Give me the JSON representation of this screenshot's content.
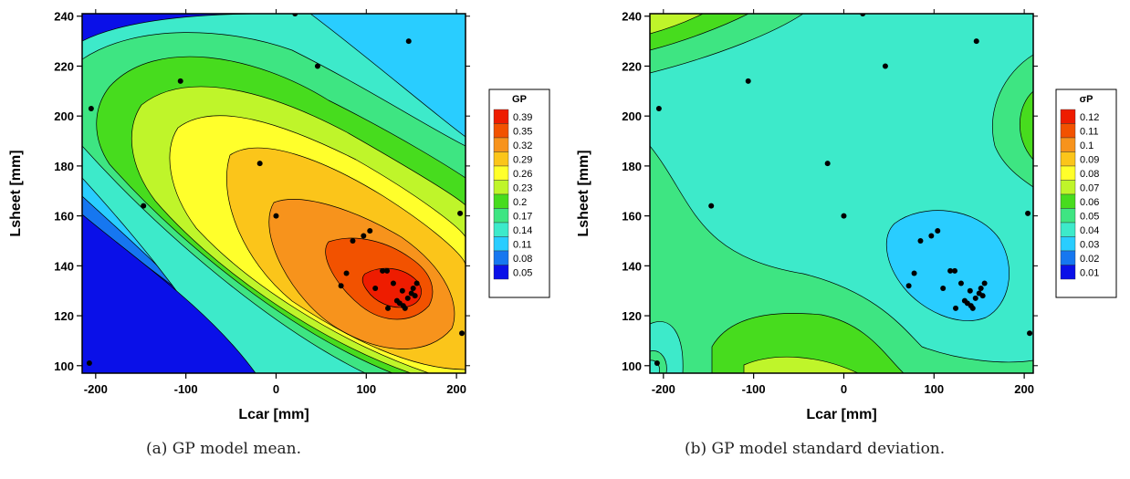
{
  "chart_data": [
    {
      "type": "contour",
      "caption": "(a) GP model mean.",
      "xlabel": "Lcar [mm]",
      "ylabel": "Lsheet [mm]",
      "xlim": [
        -215,
        210
      ],
      "ylim": [
        97,
        241
      ],
      "xticks": [
        "-200",
        "-100",
        "0",
        "100",
        "200"
      ],
      "xtick_values": [
        -200,
        -100,
        0,
        100,
        200
      ],
      "yticks": [
        "100",
        "120",
        "140",
        "160",
        "180",
        "200",
        "220",
        "240"
      ],
      "ytick_values": [
        100,
        120,
        140,
        160,
        180,
        200,
        220,
        240
      ],
      "legend_title": "GP",
      "legend_levels": [
        "0.39",
        "0.35",
        "0.32",
        "0.29",
        "0.26",
        "0.23",
        "0.2",
        "0.17",
        "0.14",
        "0.11",
        "0.08",
        "0.05"
      ],
      "legend_colors": [
        "#ee1c00",
        "#f25200",
        "#f7931c",
        "#fbc51a",
        "#ffff2b",
        "#bff52a",
        "#47dc1e",
        "#3ee582",
        "#3deaca",
        "#29cdff",
        "#1677f0",
        "#0a10e8"
      ],
      "legend_placement": "right",
      "points": [
        [
          -205,
          203
        ],
        [
          -207,
          101
        ],
        [
          -147,
          164
        ],
        [
          -106,
          214
        ],
        [
          -18,
          181
        ],
        [
          0,
          160
        ],
        [
          21,
          241
        ],
        [
          46,
          220
        ],
        [
          147,
          230
        ],
        [
          204,
          161
        ],
        [
          206,
          113
        ],
        [
          72,
          132
        ],
        [
          78,
          137
        ],
        [
          85,
          150
        ],
        [
          97,
          152
        ],
        [
          104,
          154
        ],
        [
          110,
          131
        ],
        [
          118,
          138
        ],
        [
          123,
          138
        ],
        [
          124,
          123
        ],
        [
          130,
          133
        ],
        [
          134,
          126
        ],
        [
          137,
          125
        ],
        [
          140,
          130
        ],
        [
          141,
          124
        ],
        [
          146,
          127
        ],
        [
          150,
          129
        ],
        [
          152,
          131
        ],
        [
          154,
          128
        ],
        [
          156,
          133
        ],
        [
          143,
          123
        ]
      ]
    },
    {
      "type": "contour",
      "caption": "(b) GP model standard deviation.",
      "xlabel": "Lcar [mm]",
      "ylabel": "Lsheet [mm]",
      "xlim": [
        -215,
        210
      ],
      "ylim": [
        97,
        241
      ],
      "xticks": [
        "-200",
        "-100",
        "0",
        "100",
        "200"
      ],
      "xtick_values": [
        -200,
        -100,
        0,
        100,
        200
      ],
      "yticks": [
        "100",
        "120",
        "140",
        "160",
        "180",
        "200",
        "220",
        "240"
      ],
      "ytick_values": [
        100,
        120,
        140,
        160,
        180,
        200,
        220,
        240
      ],
      "legend_title": "σP",
      "legend_levels": [
        "0.12",
        "0.11",
        "0.1",
        "0.09",
        "0.08",
        "0.07",
        "0.06",
        "0.05",
        "0.04",
        "0.03",
        "0.02",
        "0.01"
      ],
      "legend_colors": [
        "#ee1c00",
        "#f25200",
        "#f7931c",
        "#fbc51a",
        "#ffff2b",
        "#bff52a",
        "#47dc1e",
        "#3ee582",
        "#3deaca",
        "#29cdff",
        "#1677f0",
        "#0a10e8"
      ],
      "legend_placement": "right",
      "points": [
        [
          -205,
          203
        ],
        [
          -207,
          101
        ],
        [
          -147,
          164
        ],
        [
          -106,
          214
        ],
        [
          -18,
          181
        ],
        [
          0,
          160
        ],
        [
          21,
          241
        ],
        [
          46,
          220
        ],
        [
          147,
          230
        ],
        [
          204,
          161
        ],
        [
          206,
          113
        ],
        [
          72,
          132
        ],
        [
          78,
          137
        ],
        [
          85,
          150
        ],
        [
          97,
          152
        ],
        [
          104,
          154
        ],
        [
          110,
          131
        ],
        [
          118,
          138
        ],
        [
          123,
          138
        ],
        [
          124,
          123
        ],
        [
          130,
          133
        ],
        [
          134,
          126
        ],
        [
          137,
          125
        ],
        [
          140,
          130
        ],
        [
          141,
          124
        ],
        [
          146,
          127
        ],
        [
          150,
          129
        ],
        [
          152,
          131
        ],
        [
          154,
          128
        ],
        [
          156,
          133
        ],
        [
          143,
          123
        ]
      ]
    }
  ]
}
